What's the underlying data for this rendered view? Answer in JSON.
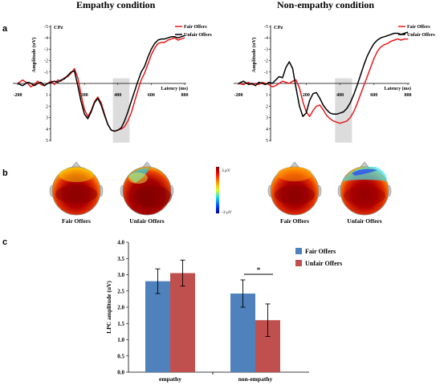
{
  "panels": {
    "a": "a",
    "b": "b",
    "c": "c"
  },
  "erp": [
    {
      "title": "Empathy condition",
      "channel": "CPz",
      "ylabel": "Amplitude (uV)",
      "xlabel": "Latency (ms)",
      "legend": [
        "Fair Offers",
        "Unfair Offers"
      ],
      "xticks": [
        "-200",
        "200",
        "400",
        "600",
        "800"
      ],
      "yticks_neg": [
        "-5",
        "-4",
        "-3",
        "-2",
        "-1"
      ],
      "yticks_pos": [
        "1",
        "2",
        "3",
        "4",
        "5"
      ]
    },
    {
      "title": "Non-empathy condition",
      "channel": "CPz",
      "ylabel": "Amplitude (uV)",
      "xlabel": "Latency (ms)",
      "legend": [
        "Fair Offers",
        "Unfair Offers"
      ],
      "xticks": [
        "-200",
        "200",
        "400",
        "600",
        "800"
      ],
      "yticks_neg": [
        "-5",
        "-4",
        "-3",
        "-2",
        "-1"
      ],
      "yticks_pos": [
        "1",
        "2",
        "3",
        "4",
        "5"
      ]
    }
  ],
  "topomaps": {
    "labels": [
      "Fair Offers",
      "Unfair Offers",
      "Fair Offers",
      "Unfair Offers"
    ],
    "colorbar_max": "3 μV",
    "colorbar_min": "-3 μV"
  },
  "chart_data": [
    {
      "type": "line",
      "title": "Empathy condition",
      "xlabel": "Latency (ms)",
      "ylabel": "Amplitude (uV)",
      "xlim": [
        -200,
        800
      ],
      "ylim": [
        5,
        -5
      ],
      "highlight_window": [
        370,
        470
      ],
      "series": [
        {
          "name": "Fair Offers",
          "color": "#e8191b",
          "x": [
            -200,
            -170,
            -140,
            -120,
            -100,
            -80,
            -60,
            -40,
            -20,
            0,
            20,
            40,
            60,
            80,
            100,
            120,
            140,
            160,
            180,
            200,
            220,
            240,
            260,
            280,
            300,
            320,
            340,
            360,
            380,
            400,
            420,
            440,
            460,
            480,
            500,
            520,
            540,
            560,
            580,
            600,
            620,
            640,
            660,
            680,
            700,
            720,
            740,
            760,
            780,
            800
          ],
          "y": [
            0.0,
            -0.3,
            0.0,
            0.3,
            0.1,
            -0.2,
            0.1,
            0.2,
            0.0,
            -0.2,
            0.1,
            -0.3,
            -0.2,
            -0.5,
            -0.6,
            -0.9,
            -1.3,
            -0.5,
            1.0,
            2.3,
            2.9,
            2.4,
            1.6,
            1.2,
            1.7,
            2.7,
            3.6,
            4.1,
            4.2,
            4.1,
            4.0,
            3.8,
            3.3,
            2.6,
            1.6,
            0.6,
            -0.3,
            -0.9,
            -1.7,
            -2.5,
            -3.1,
            -3.5,
            -3.6,
            -3.6,
            -3.8,
            -3.9,
            -4.0,
            -3.8,
            -3.9,
            -4.0
          ]
        },
        {
          "name": "Unfair Offers",
          "color": "#000000",
          "x": [
            -200,
            -170,
            -140,
            -120,
            -100,
            -80,
            -60,
            -40,
            -20,
            0,
            20,
            40,
            60,
            80,
            100,
            120,
            140,
            160,
            180,
            200,
            220,
            240,
            260,
            280,
            300,
            320,
            340,
            360,
            380,
            400,
            420,
            440,
            460,
            480,
            500,
            520,
            540,
            560,
            580,
            600,
            620,
            640,
            660,
            680,
            700,
            720,
            740,
            760,
            780,
            800
          ],
          "y": [
            0.0,
            0.2,
            -0.1,
            0.0,
            0.2,
            0.0,
            -0.1,
            0.2,
            0.0,
            -0.1,
            -0.2,
            -0.1,
            -0.3,
            -0.4,
            -0.7,
            -1.0,
            -1.1,
            0.2,
            1.6,
            2.7,
            3.1,
            2.5,
            1.7,
            1.3,
            1.9,
            2.8,
            3.6,
            4.1,
            4.2,
            4.1,
            3.9,
            3.3,
            2.5,
            1.6,
            0.7,
            -0.2,
            -1.0,
            -1.5,
            -2.3,
            -3.0,
            -3.5,
            -3.8,
            -3.9,
            -3.9,
            -4.0,
            -4.1,
            -4.1,
            -4.0,
            -4.1,
            -4.2
          ]
        }
      ]
    },
    {
      "type": "line",
      "title": "Non-empathy condition",
      "xlabel": "Latency (ms)",
      "ylabel": "Amplitude (uV)",
      "xlim": [
        -200,
        800
      ],
      "ylim": [
        5,
        -5
      ],
      "highlight_window": [
        370,
        470
      ],
      "series": [
        {
          "name": "Fair Offers",
          "color": "#e8191b",
          "x": [
            -200,
            -170,
            -140,
            -120,
            -100,
            -80,
            -60,
            -40,
            -20,
            0,
            20,
            40,
            60,
            80,
            100,
            120,
            140,
            160,
            180,
            200,
            220,
            240,
            260,
            280,
            300,
            320,
            340,
            360,
            380,
            400,
            420,
            440,
            460,
            480,
            500,
            520,
            540,
            560,
            580,
            600,
            620,
            640,
            660,
            680,
            700,
            720,
            740,
            760,
            780,
            800
          ],
          "y": [
            0.0,
            0.1,
            -0.1,
            0.1,
            0.0,
            0.1,
            -0.1,
            0.0,
            0.1,
            0.3,
            0.2,
            0.0,
            -0.2,
            -0.1,
            0.0,
            -0.2,
            -0.3,
            0.4,
            1.6,
            2.5,
            2.9,
            2.4,
            2.0,
            1.9,
            2.3,
            2.8,
            3.1,
            3.3,
            3.4,
            3.5,
            3.4,
            3.3,
            3.0,
            2.5,
            1.8,
            1.0,
            0.2,
            -0.6,
            -1.4,
            -2.2,
            -2.8,
            -3.2,
            -3.4,
            -3.5,
            -3.7,
            -3.8,
            -3.9,
            -3.8,
            -3.9,
            -3.9
          ]
        },
        {
          "name": "Unfair Offers",
          "color": "#000000",
          "x": [
            -200,
            -170,
            -140,
            -120,
            -100,
            -80,
            -60,
            -40,
            -20,
            0,
            20,
            40,
            60,
            80,
            100,
            120,
            140,
            160,
            180,
            200,
            220,
            240,
            260,
            280,
            300,
            320,
            340,
            360,
            380,
            400,
            420,
            440,
            460,
            480,
            500,
            520,
            540,
            560,
            580,
            600,
            620,
            640,
            660,
            680,
            700,
            720,
            740,
            760,
            780,
            800
          ],
          "y": [
            0.0,
            -0.2,
            0.1,
            0.0,
            0.2,
            -0.1,
            0.0,
            0.1,
            -0.1,
            0.0,
            -0.3,
            -0.6,
            -0.5,
            -1.4,
            -1.9,
            -1.3,
            0.4,
            2.0,
            2.9,
            2.6,
            1.5,
            0.9,
            0.8,
            1.3,
            1.9,
            2.3,
            2.6,
            2.7,
            2.7,
            2.6,
            2.5,
            2.2,
            1.7,
            1.0,
            0.2,
            -0.7,
            -1.6,
            -2.4,
            -3.0,
            -3.5,
            -3.8,
            -4.0,
            -4.1,
            -4.2,
            -4.3,
            -4.4,
            -4.4,
            -4.3,
            -4.4,
            -4.5
          ]
        }
      ]
    },
    {
      "type": "bar",
      "xlabel": "",
      "ylabel": "LPC amplitude (uV)",
      "categories": [
        "empathy",
        "non-empathy"
      ],
      "ylim": [
        0.0,
        4.0
      ],
      "yticks": [
        "0.0",
        "0.5",
        "1.0",
        "1.5",
        "2.0",
        "2.5",
        "3.0",
        "3.5",
        "4.0"
      ],
      "legend_position": "top-right",
      "significance": "*",
      "series": [
        {
          "name": "Fair Offers",
          "color": "#4f81bd",
          "values": [
            2.8,
            2.42
          ],
          "errors": [
            0.38,
            0.42
          ]
        },
        {
          "name": "Unfair Offers",
          "color": "#c0504d",
          "values": [
            3.05,
            1.6
          ],
          "errors": [
            0.4,
            0.5
          ]
        }
      ]
    }
  ]
}
